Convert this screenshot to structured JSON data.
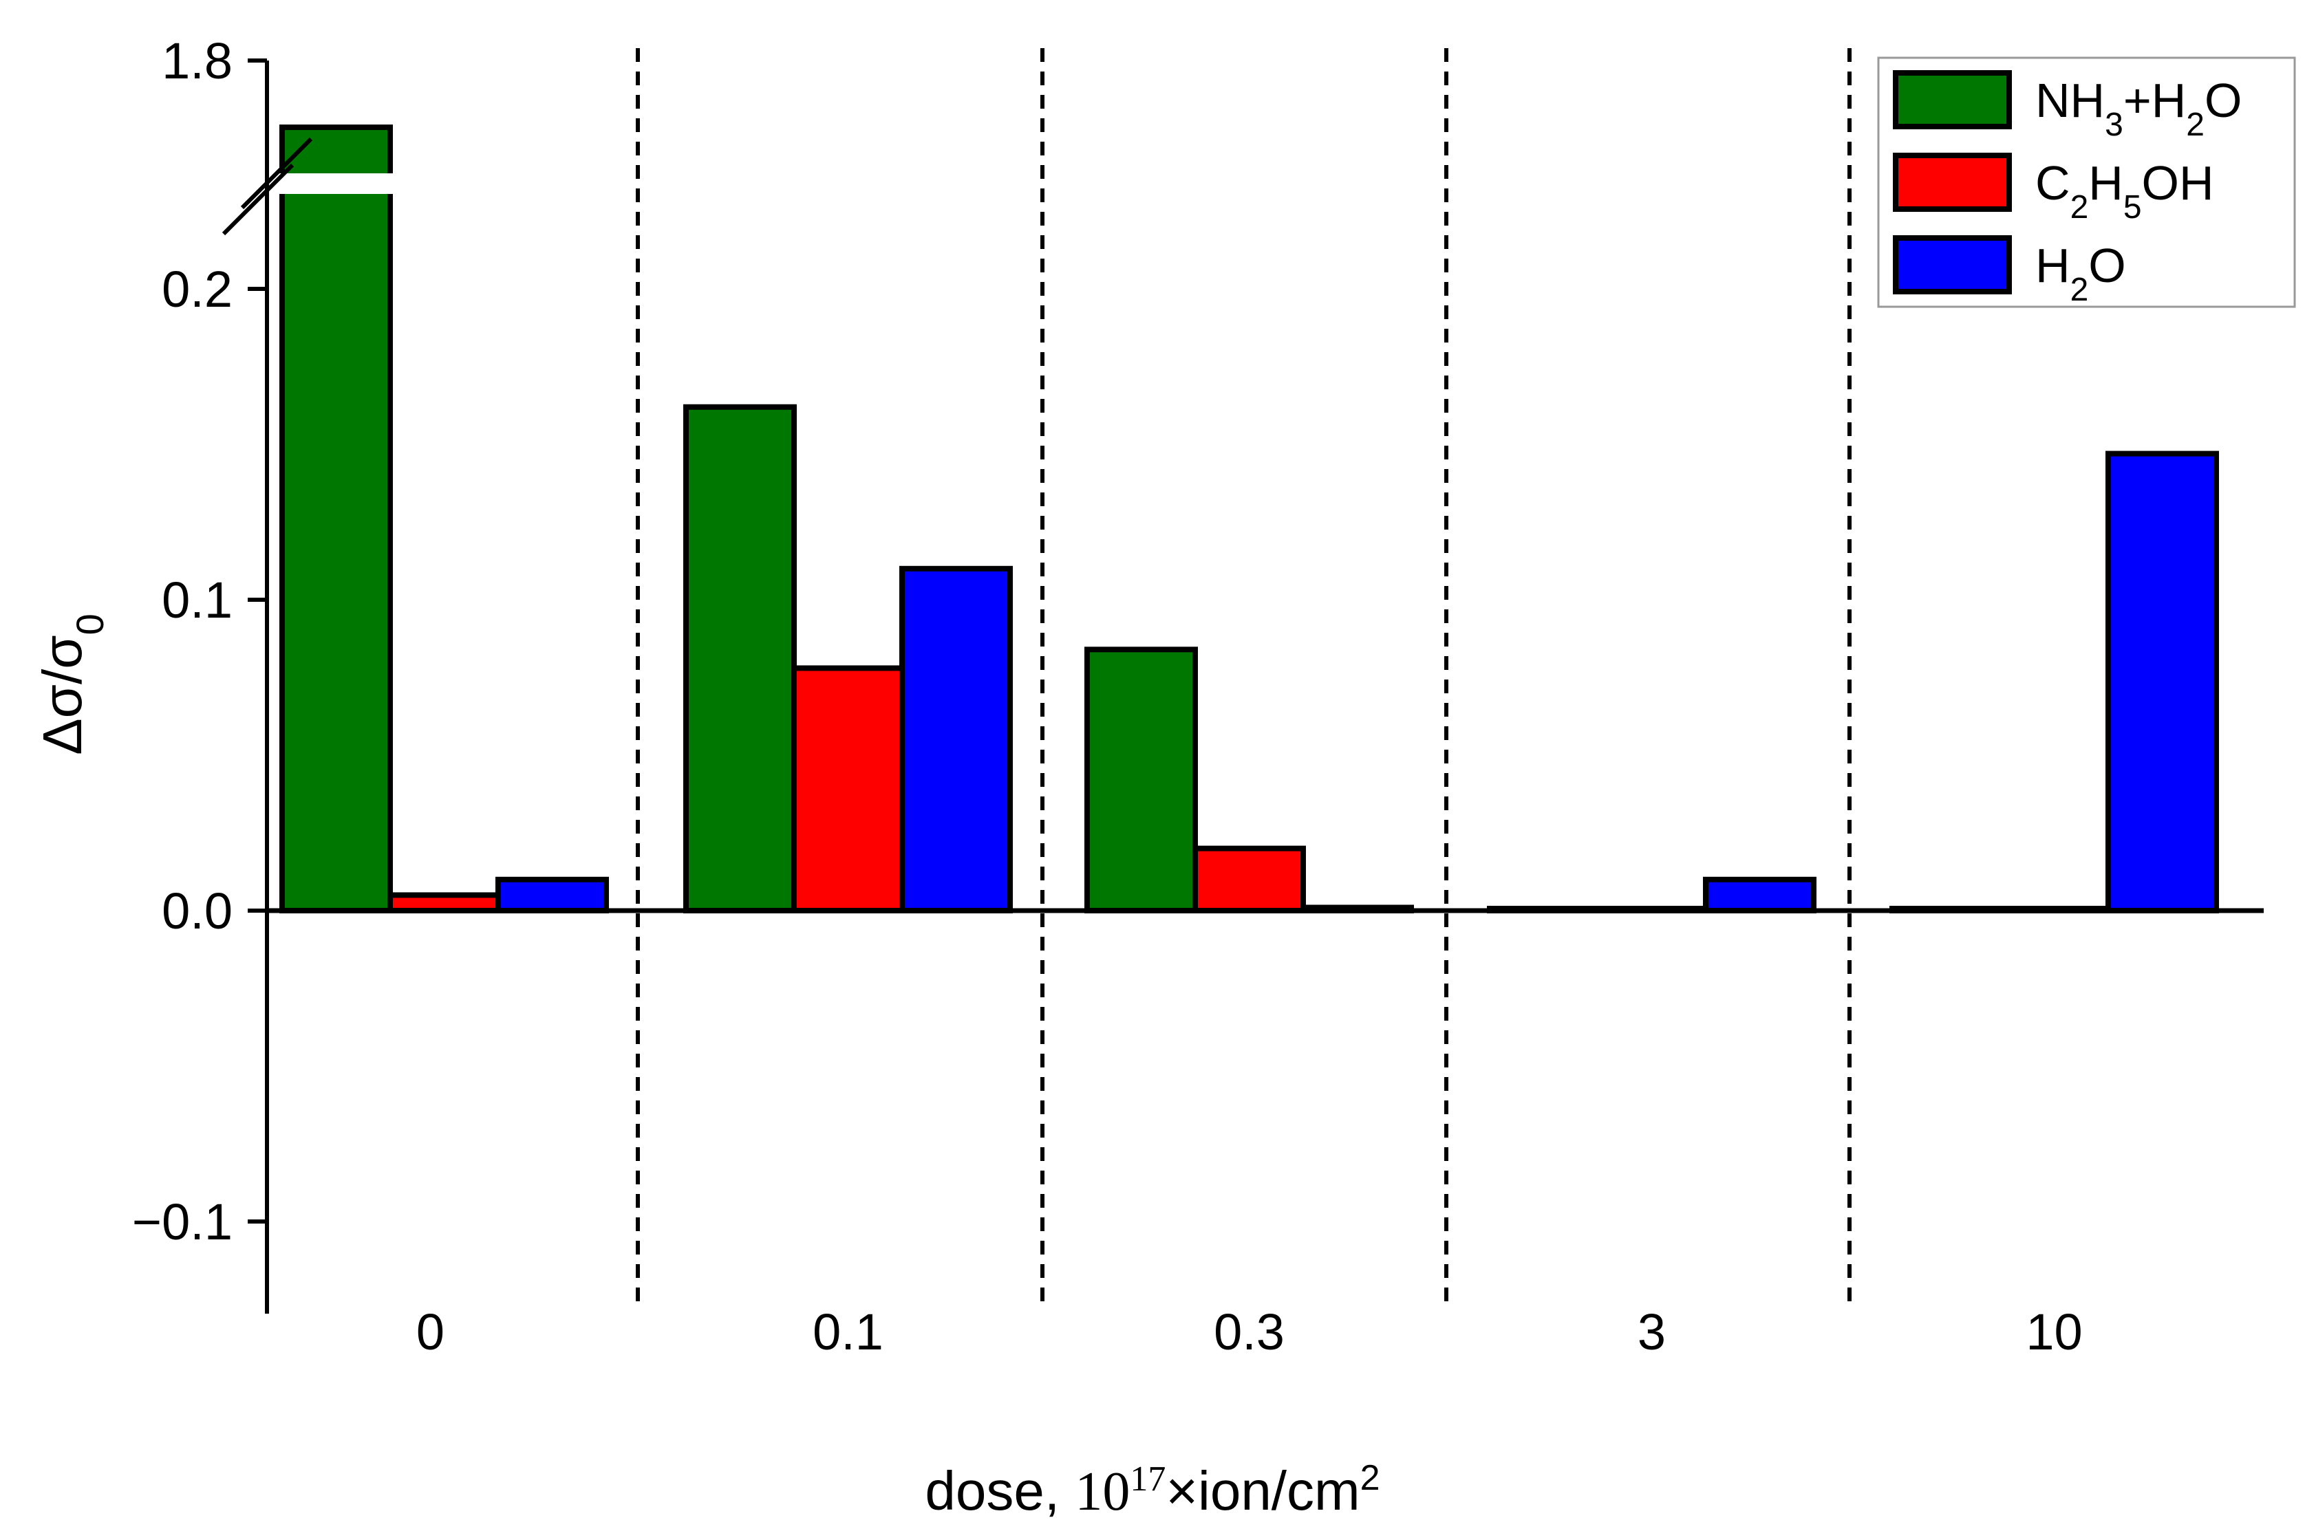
{
  "chart_data": {
    "type": "bar",
    "title": "",
    "xlabel": {
      "prefix": "dose, ",
      "base": "10",
      "exp": "17",
      "suffix": "×ion/cm",
      "suffix_exp": "2"
    },
    "ylabel": {
      "main": "Δσ/σ",
      "sub": "0"
    },
    "categories": [
      "0",
      "0.1",
      "0.3",
      "3",
      "10"
    ],
    "series": [
      {
        "name": "NH3+H2O",
        "color": "#007700",
        "values": [
          1.72,
          0.162,
          0.084,
          0.0,
          0.0
        ]
      },
      {
        "name": "C2H5OH",
        "color": "#ff0000",
        "values": [
          0.005,
          0.078,
          0.02,
          0.0,
          0.0
        ]
      },
      {
        "name": "H2O",
        "color": "#0000ff",
        "values": [
          0.01,
          0.11,
          0.001,
          0.01,
          0.147
        ]
      }
    ],
    "ylim": [
      -0.13,
      1.8
    ],
    "axis_break": [
      0.23,
      1.65
    ],
    "yticks": [
      {
        "value": -0.1,
        "label": "−0.1"
      },
      {
        "value": 0.0,
        "label": "0.0"
      },
      {
        "value": 0.1,
        "label": "0.1"
      },
      {
        "value": 0.2,
        "label": "0.2"
      },
      {
        "value": 1.8,
        "label": "1.8"
      }
    ],
    "legend": {
      "placement": "top-right",
      "entries": [
        {
          "color": "#007700",
          "parts": [
            [
              "NH",
              ""
            ],
            [
              "3",
              "sub"
            ],
            [
              "+H",
              ""
            ],
            [
              "2",
              "sub"
            ],
            [
              "O",
              ""
            ]
          ]
        },
        {
          "color": "#ff0000",
          "parts": [
            [
              "C",
              ""
            ],
            [
              "2",
              "sub"
            ],
            [
              "H",
              ""
            ],
            [
              "5",
              "sub"
            ],
            [
              "OH",
              ""
            ]
          ]
        },
        {
          "color": "#0000ff",
          "parts": [
            [
              "H",
              ""
            ],
            [
              "2",
              "sub"
            ],
            [
              "O",
              ""
            ]
          ]
        }
      ]
    },
    "group_separators": "dashed",
    "grid": false
  }
}
